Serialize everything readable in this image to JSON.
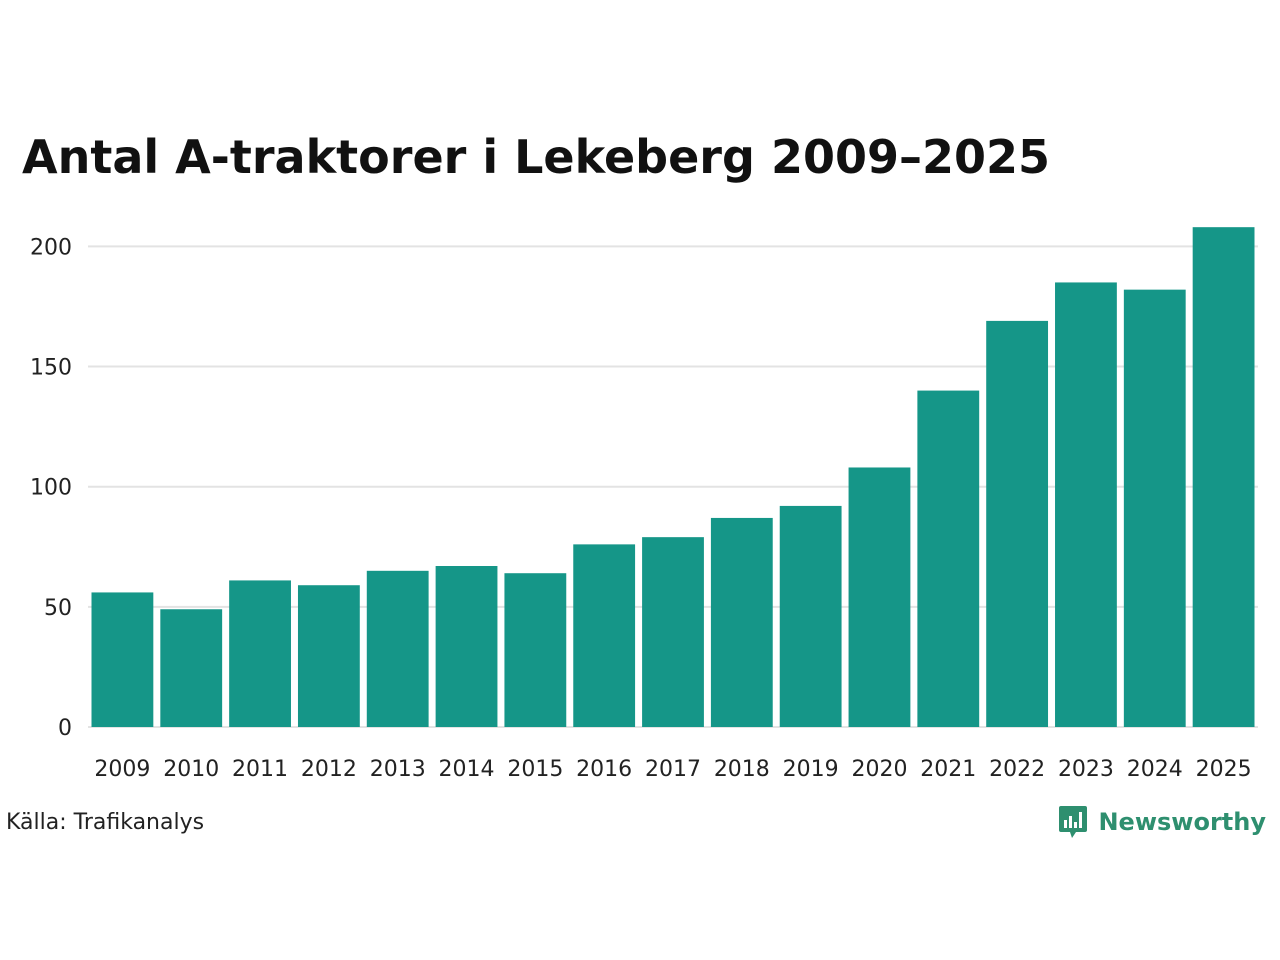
{
  "chart_data": {
    "type": "bar",
    "title": "Antal A-traktorer i Lekeberg 2009–2025",
    "categories": [
      "2009",
      "2010",
      "2011",
      "2012",
      "2013",
      "2014",
      "2015",
      "2016",
      "2017",
      "2018",
      "2019",
      "2020",
      "2021",
      "2022",
      "2023",
      "2024",
      "2025"
    ],
    "values": [
      56,
      49,
      61,
      59,
      65,
      67,
      64,
      76,
      79,
      87,
      92,
      108,
      140,
      169,
      185,
      182,
      208
    ],
    "xlabel": "",
    "ylabel": "",
    "ylim": [
      0,
      210
    ],
    "yticks": [
      "0",
      "50",
      "100",
      "150",
      "200"
    ],
    "grid": true,
    "bar_color": "#159688",
    "grid_color": "#e3e3e3"
  },
  "footer": {
    "source": "Källa: Trafikanalys",
    "brand": "Newsworthy",
    "brand_icon": "newsworthy-logo-icon",
    "brand_color": "#2e8f6f"
  }
}
